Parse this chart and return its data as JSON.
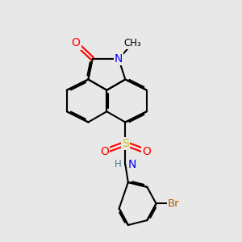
{
  "bg_color": "#e8e8e8",
  "bond_color": "#000000",
  "bond_width": 1.5,
  "atom_colors": {
    "O": "#ff0000",
    "N": "#0000ff",
    "S": "#cccc00",
    "Br": "#b05a00",
    "H": "#408080",
    "C": "#000000"
  },
  "figsize": [
    3.0,
    3.0
  ],
  "dpi": 100
}
